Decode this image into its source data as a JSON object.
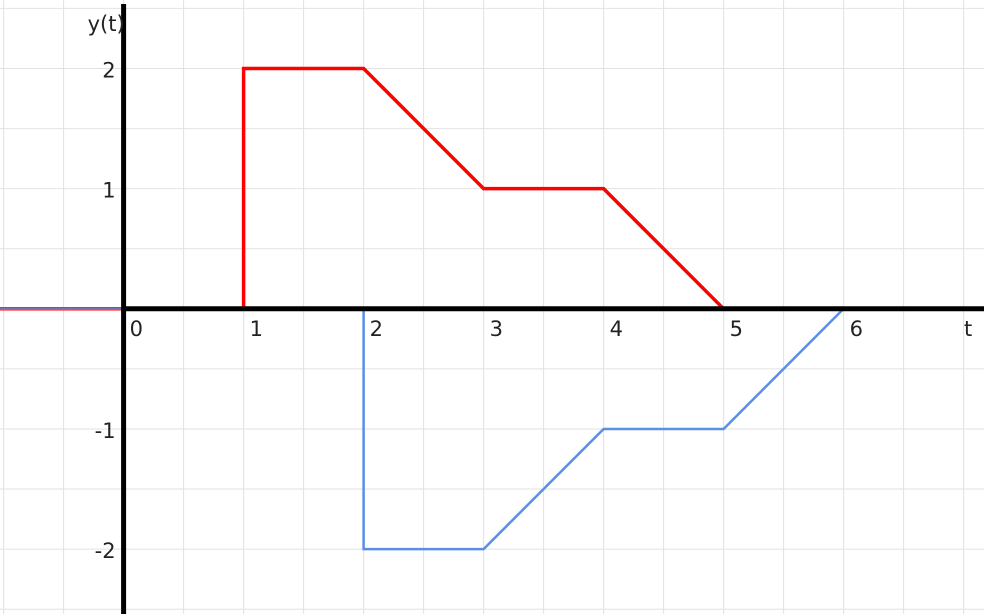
{
  "chart_data": {
    "type": "line",
    "xlabel": "t",
    "ylabel": "y(t)",
    "xlim": [
      -1.03,
      7.17
    ],
    "ylim": [
      -2.54,
      2.57
    ],
    "grid": true,
    "grid_step": 0.5,
    "x_ticks": [
      {
        "value": 0,
        "label": "0"
      },
      {
        "value": 1,
        "label": "1"
      },
      {
        "value": 2,
        "label": "2"
      },
      {
        "value": 3,
        "label": "3"
      },
      {
        "value": 4,
        "label": "4"
      },
      {
        "value": 5,
        "label": "5"
      },
      {
        "value": 6,
        "label": "6"
      }
    ],
    "y_ticks": [
      {
        "value": 2,
        "label": "2"
      },
      {
        "value": 1,
        "label": "1"
      },
      {
        "value": -1,
        "label": "-1"
      },
      {
        "value": -2,
        "label": "-2"
      }
    ],
    "series": [
      {
        "color": "#ff0000",
        "points": [
          [
            -1.03,
            0
          ],
          [
            1,
            0
          ],
          [
            1,
            2
          ],
          [
            2,
            2
          ],
          [
            3,
            1
          ],
          [
            4,
            1
          ],
          [
            5,
            0
          ],
          [
            6,
            0
          ]
        ]
      },
      {
        "color": "#5b8ee6",
        "points": [
          [
            -1.03,
            0
          ],
          [
            2,
            0
          ],
          [
            2,
            -2
          ],
          [
            3,
            -2
          ],
          [
            4,
            -1
          ],
          [
            5,
            -1
          ],
          [
            6,
            0
          ],
          [
            7,
            0
          ]
        ]
      }
    ],
    "colors": {
      "grid": "#e2e2e2",
      "axis": "#000000",
      "baseline": "#7a6fb0"
    }
  }
}
